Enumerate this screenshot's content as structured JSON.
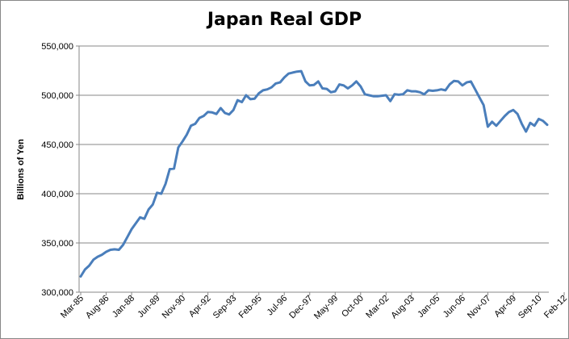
{
  "chart_data": {
    "type": "line",
    "title": "Japan Real GDP",
    "xlabel": "",
    "ylabel": "Billions of Yen",
    "ylim": [
      300000,
      550000
    ],
    "yticks": [
      300000,
      350000,
      400000,
      450000,
      500000,
      550000
    ],
    "ytick_labels": [
      "300,000",
      "350,000",
      "400,000",
      "450,000",
      "500,000",
      "550,000"
    ],
    "x_tick_labels": [
      "Mar-85",
      "Aug-86",
      "Jan-88",
      "Jun-89",
      "Nov-90",
      "Apr-92",
      "Sep-93",
      "Feb-95",
      "Jul-96",
      "Dec-97",
      "May-99",
      "Oct-00",
      "Mar-02",
      "Aug-03",
      "Jan-05",
      "Jun-06",
      "Nov-07",
      "Apr-09",
      "Sep-10",
      "Feb-12"
    ],
    "x_tick_interval_quarters": 6,
    "grid": "horizontal",
    "legend": "none",
    "line_color": "#4a7ebb",
    "series": [
      {
        "x_start": "Mar-85",
        "frequency": "quarterly",
        "values": [
          316000,
          323000,
          327000,
          333000,
          336000,
          338000,
          341000,
          343000,
          343500,
          343000,
          348000,
          356000,
          364000,
          370000,
          376000,
          374500,
          384000,
          389000,
          401000,
          400000,
          410000,
          425000,
          425500,
          447000,
          453000,
          460000,
          469000,
          471000,
          477000,
          479000,
          483000,
          482500,
          481000,
          487000,
          482000,
          480500,
          485000,
          495000,
          493000,
          500000,
          496000,
          496500,
          502000,
          505000,
          506000,
          508000,
          512000,
          513000,
          518000,
          522000,
          523000,
          524000,
          524500,
          514000,
          510000,
          510500,
          514000,
          507000,
          506500,
          503000,
          504000,
          511000,
          510000,
          507000,
          510000,
          514000,
          509000,
          501000,
          500000,
          499000,
          499000,
          499500,
          500000,
          494000,
          501000,
          500500,
          501000,
          505000,
          504000,
          504000,
          503000,
          501000,
          505000,
          504500,
          505000,
          506000,
          505000,
          511000,
          514500,
          514000,
          510000,
          513000,
          514000,
          506000,
          498000,
          490000,
          468000,
          473000,
          469000,
          474000,
          479000,
          483000,
          485000,
          481000,
          471000,
          463000,
          472000,
          469000,
          476000,
          474000,
          470000
        ]
      }
    ]
  }
}
